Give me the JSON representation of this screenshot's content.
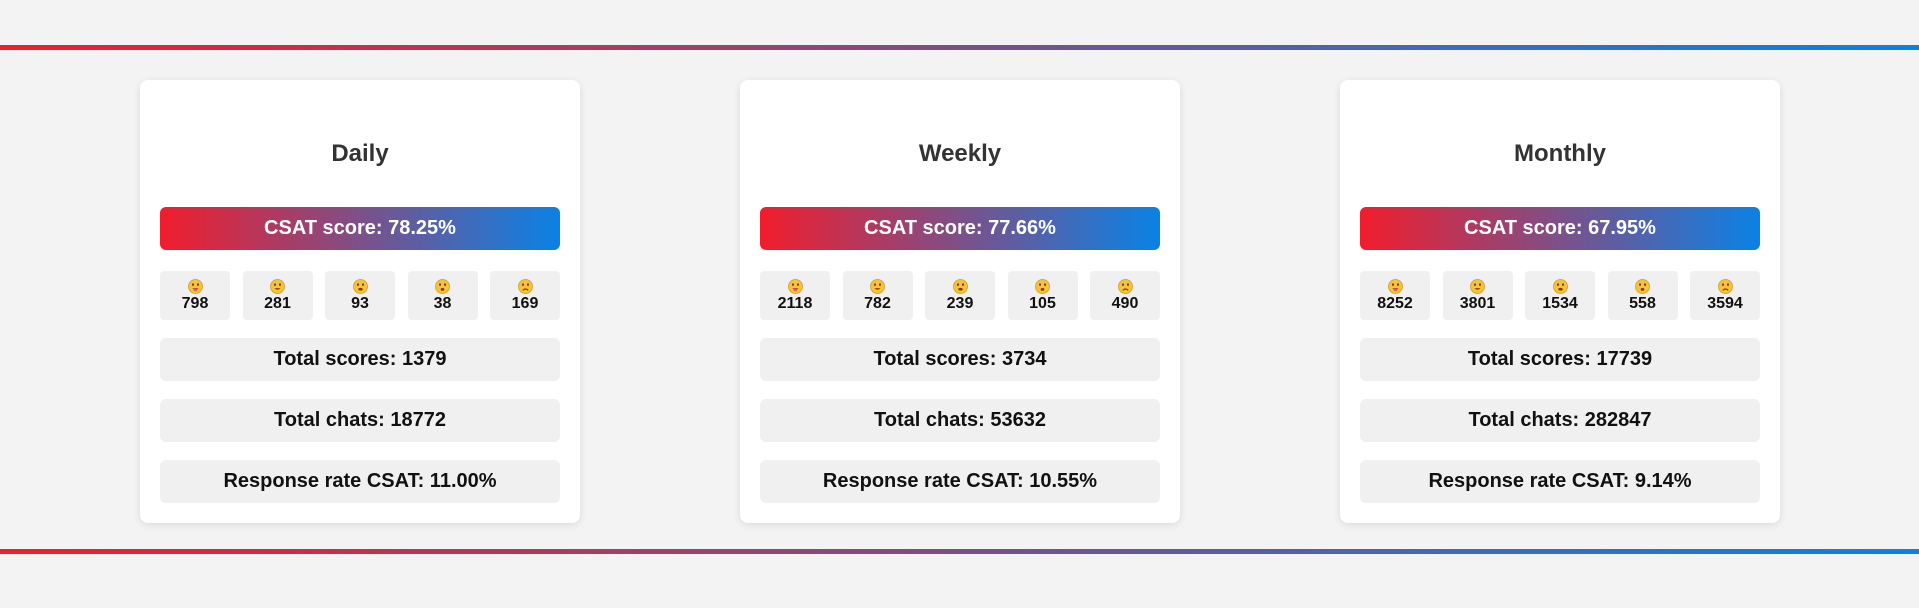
{
  "theme": {
    "gradient_start": "#f11d2c",
    "gradient_end": "#0a82e5",
    "background": "#f3f3f3",
    "card_background": "#ffffff",
    "chip_background": "#f0f0f0"
  },
  "emoji_icons": [
    "grinning-tongue-face",
    "grinning-face",
    "neutral-face",
    "confused-face",
    "frowning-face"
  ],
  "cards": [
    {
      "title": "Daily",
      "csat": "CSAT score: 78.25%",
      "emoji_counts": [
        "798",
        "281",
        "93",
        "38",
        "169"
      ],
      "total_scores": "Total scores: 1379",
      "total_chats": "Total chats: 18772",
      "response_rate": "Response rate CSAT: 11.00%"
    },
    {
      "title": "Weekly",
      "csat": "CSAT score: 77.66%",
      "emoji_counts": [
        "2118",
        "782",
        "239",
        "105",
        "490"
      ],
      "total_scores": "Total scores: 3734",
      "total_chats": "Total chats: 53632",
      "response_rate": "Response rate CSAT: 10.55%"
    },
    {
      "title": "Monthly",
      "csat": "CSAT score: 67.95%",
      "emoji_counts": [
        "8252",
        "3801",
        "1534",
        "558",
        "3594"
      ],
      "total_scores": "Total scores: 17739",
      "total_chats": "Total chats: 282847",
      "response_rate": "Response rate CSAT: 9.14%"
    }
  ]
}
